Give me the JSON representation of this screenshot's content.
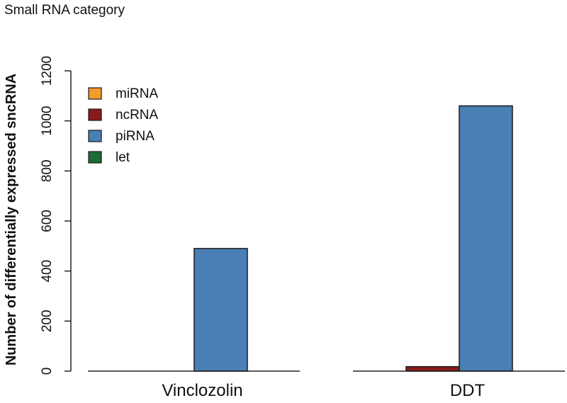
{
  "chart_data": {
    "type": "bar",
    "title": "Small RNA category",
    "xlabel": "",
    "ylabel": "Number of differentially expressed sncRNA",
    "ylim": [
      0,
      1200
    ],
    "yticks": [
      0,
      200,
      400,
      600,
      800,
      1000,
      1200
    ],
    "categories": [
      "Vinclozolin",
      "DDT"
    ],
    "series": [
      {
        "name": "miRNA",
        "color": "#F39C2A",
        "values": [
          0,
          0
        ]
      },
      {
        "name": "ncRNA",
        "color": "#8B1A1A",
        "values": [
          0,
          18
        ]
      },
      {
        "name": "piRNA",
        "color": "#4A7FB5",
        "values": [
          490,
          1060
        ]
      },
      {
        "name": "let",
        "color": "#1E6B35",
        "values": [
          0,
          0
        ]
      }
    ],
    "legend_position": "top-left",
    "grid": false
  }
}
